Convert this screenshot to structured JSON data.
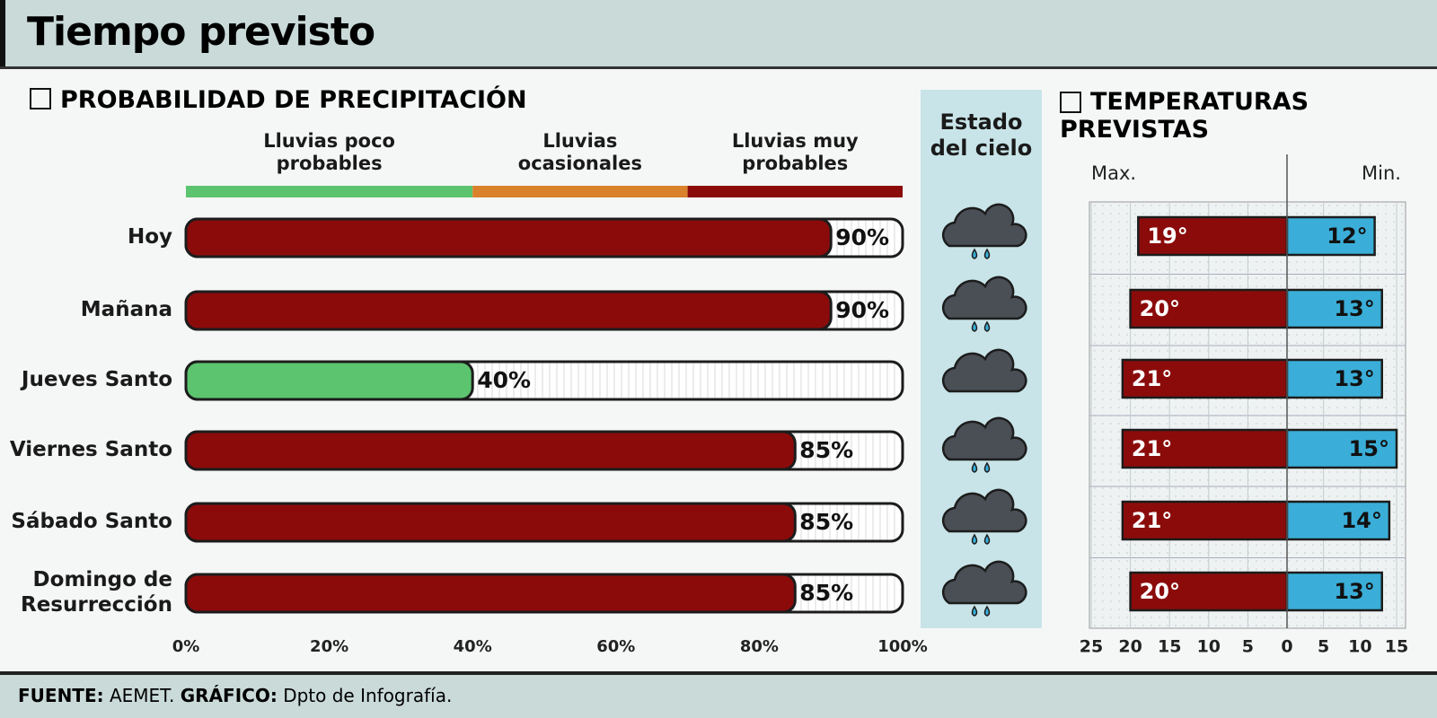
{
  "header": {
    "title": "Tiempo previsto"
  },
  "chart_data": [
    {
      "type": "bar",
      "title": "PROBABILIDAD DE PRECIPITACIÓN",
      "zones": [
        {
          "name": "Lluvias poco probables",
          "color": "#5cc46e",
          "range": [
            0,
            40
          ]
        },
        {
          "name": "Lluvias ocasionales",
          "color": "#d9822b",
          "range": [
            40,
            70
          ]
        },
        {
          "name": "Lluvias muy probables",
          "color": "#8b0b0b",
          "range": [
            70,
            100
          ]
        }
      ],
      "categories": [
        "Hoy",
        "Mañana",
        "Jueves Santo",
        "Viernes Santo",
        "Sábado Santo",
        "Domingo de Resurrección"
      ],
      "values": [
        90,
        90,
        40,
        85,
        85,
        85
      ],
      "value_labels": [
        "90%",
        "90%",
        "40%",
        "85%",
        "85%",
        "85%"
      ],
      "xlim": [
        0,
        100
      ],
      "xticks": [
        {
          "value": 0,
          "label": "0%"
        },
        {
          "value": 20,
          "label": "20%"
        },
        {
          "value": 40,
          "label": "40%"
        },
        {
          "value": 60,
          "label": "60%"
        },
        {
          "value": 80,
          "label": "80%"
        },
        {
          "value": 100,
          "label": "100%"
        }
      ]
    },
    {
      "type": "diverging-bar",
      "title": "TEMPERATURAS PREVISTAS",
      "grid": true,
      "series": [
        {
          "name": "Max.",
          "color": "#8b0b0b",
          "values": [
            19,
            20,
            21,
            21,
            21,
            20
          ],
          "value_labels": [
            "19°",
            "20°",
            "21°",
            "21°",
            "21°",
            "20°"
          ],
          "xlim": [
            25,
            0
          ],
          "xticks": [
            25,
            20,
            15,
            10,
            5,
            0
          ]
        },
        {
          "name": "Min.",
          "color": "#3aaed8",
          "values": [
            12,
            13,
            13,
            15,
            14,
            13
          ],
          "value_labels": [
            "12°",
            "13°",
            "13°",
            "15°",
            "14°",
            "13°"
          ],
          "xlim": [
            0,
            15
          ],
          "xticks": [
            5,
            10,
            15
          ]
        }
      ]
    }
  ],
  "sky": {
    "title": "Estado del cielo"
  },
  "footer": {
    "source_label": "FUENTE:",
    "source": "AEMET.",
    "credit_label": "GRÁFICO:",
    "credit": "Dpto de Infografía."
  }
}
